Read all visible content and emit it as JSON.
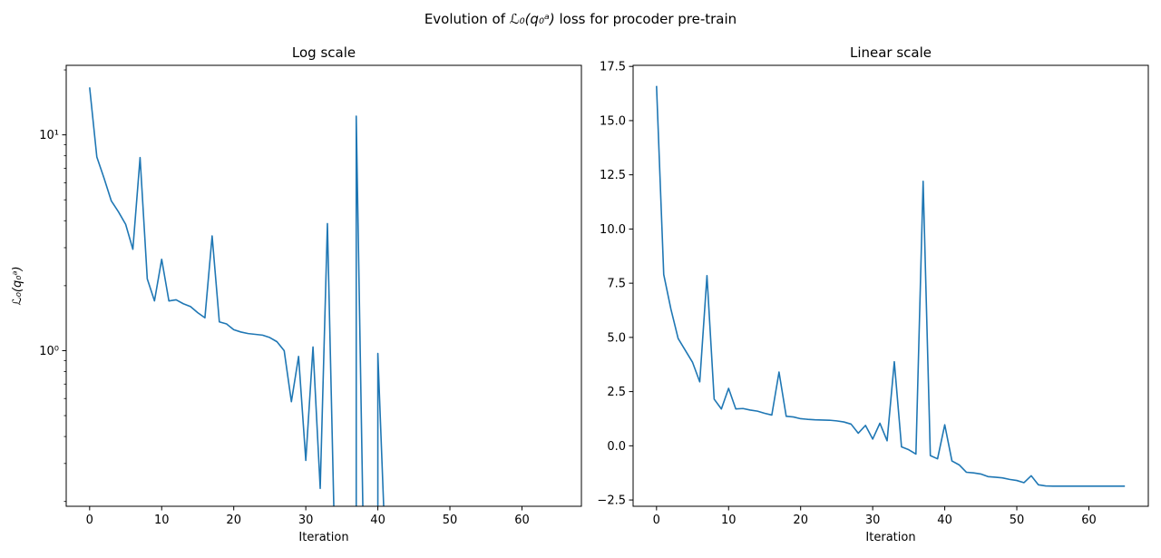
{
  "figure_title_prefix": "Evolution of ",
  "figure_title_math": "ℒ₀(q₀ᵃ)",
  "figure_title_suffix": " loss for procoder pre-train",
  "line_color": "#1f77b4",
  "chart_data": [
    {
      "type": "line",
      "title": "Log scale",
      "xlabel": "Iteration",
      "ylabel": "ℒ₀(q₀ᵃ)",
      "yscale": "log",
      "xlim": [
        -3.25,
        68.25
      ],
      "ylim": [
        0.19,
        21
      ],
      "xticks": [
        0,
        10,
        20,
        30,
        40,
        50,
        60
      ],
      "yticks": [
        1,
        10
      ],
      "ytick_labels": [
        "10⁰",
        "10¹"
      ],
      "grid": false,
      "note_nonpositive": "values at or below zero are not drawn on log axis",
      "series": [
        {
          "x": [
            0,
            1,
            2,
            3,
            4,
            5,
            6,
            7,
            8,
            9,
            10,
            11,
            12,
            13,
            14,
            15,
            16,
            17,
            18,
            19,
            20,
            21,
            22,
            23,
            24,
            25,
            26,
            27,
            28,
            29,
            30,
            31,
            32,
            33,
            34,
            35,
            36,
            37,
            38,
            39,
            40,
            41,
            42,
            43,
            44,
            45,
            46,
            47,
            48,
            49,
            50,
            51,
            52,
            53,
            54,
            55,
            56,
            57,
            58,
            59,
            60,
            61,
            62,
            63,
            64,
            65
          ],
          "y": [
            16.6,
            7.9,
            6.3,
            4.95,
            4.4,
            3.85,
            2.95,
            7.85,
            2.15,
            1.7,
            2.65,
            1.7,
            1.72,
            1.65,
            1.6,
            1.5,
            1.42,
            3.4,
            1.36,
            1.33,
            1.25,
            1.22,
            1.2,
            1.19,
            1.18,
            1.15,
            1.1,
            1.0,
            0.58,
            0.94,
            0.31,
            1.04,
            0.23,
            3.88,
            -0.05,
            -0.18,
            -0.38,
            12.2,
            -0.45,
            -0.6,
            0.97,
            -0.7,
            -0.88,
            -1.22,
            -1.25,
            -1.3,
            -1.42,
            -1.45,
            -1.48,
            -1.55,
            -1.6,
            -1.7,
            -1.38,
            -1.8,
            -1.85,
            -1.86,
            -1.86,
            -1.86,
            -1.86,
            -1.86,
            -1.86,
            -1.86,
            -1.86,
            -1.86,
            -1.86,
            -1.86
          ]
        }
      ]
    },
    {
      "type": "line",
      "title": "Linear scale",
      "xlabel": "Iteration",
      "ylabel": "",
      "yscale": "linear",
      "xlim": [
        -3.25,
        68.25
      ],
      "ylim": [
        -2.79,
        17.55
      ],
      "xticks": [
        0,
        10,
        20,
        30,
        40,
        50,
        60
      ],
      "yticks": [
        -2.5,
        0.0,
        2.5,
        5.0,
        7.5,
        10.0,
        12.5,
        15.0,
        17.5
      ],
      "ytick_labels": [
        "−2.5",
        "0.0",
        "2.5",
        "5.0",
        "7.5",
        "10.0",
        "12.5",
        "15.0",
        "17.5"
      ],
      "grid": false,
      "series": [
        {
          "x": [
            0,
            1,
            2,
            3,
            4,
            5,
            6,
            7,
            8,
            9,
            10,
            11,
            12,
            13,
            14,
            15,
            16,
            17,
            18,
            19,
            20,
            21,
            22,
            23,
            24,
            25,
            26,
            27,
            28,
            29,
            30,
            31,
            32,
            33,
            34,
            35,
            36,
            37,
            38,
            39,
            40,
            41,
            42,
            43,
            44,
            45,
            46,
            47,
            48,
            49,
            50,
            51,
            52,
            53,
            54,
            55,
            56,
            57,
            58,
            59,
            60,
            61,
            62,
            63,
            64,
            65
          ],
          "y": [
            16.6,
            7.9,
            6.3,
            4.95,
            4.4,
            3.85,
            2.95,
            7.85,
            2.15,
            1.7,
            2.65,
            1.7,
            1.72,
            1.65,
            1.6,
            1.5,
            1.42,
            3.4,
            1.36,
            1.33,
            1.25,
            1.22,
            1.2,
            1.19,
            1.18,
            1.15,
            1.1,
            1.0,
            0.58,
            0.94,
            0.31,
            1.04,
            0.23,
            3.88,
            -0.05,
            -0.18,
            -0.38,
            12.2,
            -0.45,
            -0.6,
            0.97,
            -0.7,
            -0.88,
            -1.22,
            -1.25,
            -1.3,
            -1.42,
            -1.45,
            -1.48,
            -1.55,
            -1.6,
            -1.7,
            -1.38,
            -1.8,
            -1.85,
            -1.86,
            -1.86,
            -1.86,
            -1.86,
            -1.86,
            -1.86,
            -1.86,
            -1.86,
            -1.86,
            -1.86,
            -1.86
          ]
        }
      ]
    }
  ]
}
